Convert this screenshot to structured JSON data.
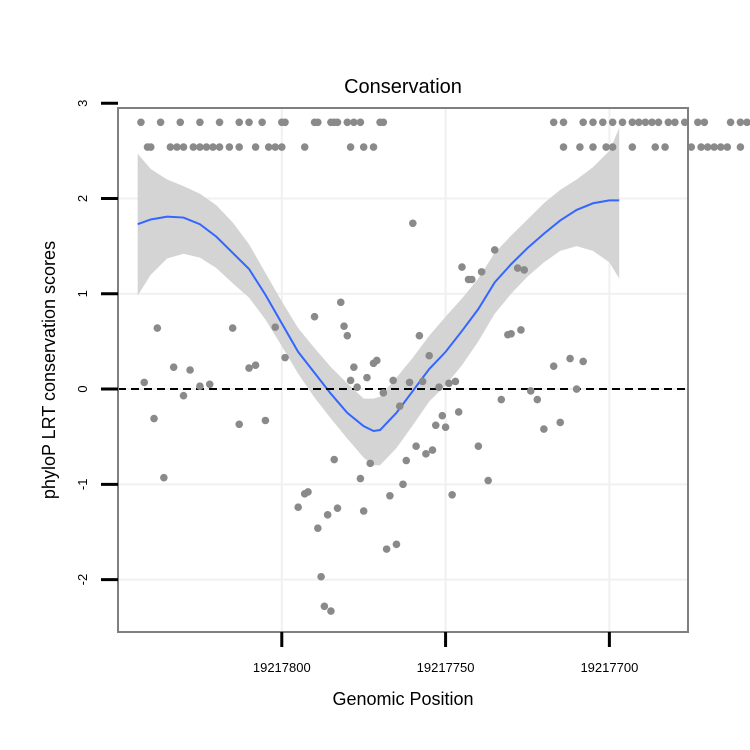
{
  "chart_data": {
    "type": "scatter",
    "title": "Conservation",
    "xlabel": "Genomic Position",
    "ylabel": "phyloP LRT conservation scores",
    "x_reversed": true,
    "xlim": [
      19217850,
      19217676
    ],
    "ylim": [
      -2.55,
      2.95
    ],
    "x_ticks": [
      19217800,
      19217750,
      19217700
    ],
    "x_tick_labels": [
      "19217800",
      "19217750",
      "19217700"
    ],
    "y_ticks": [
      -2,
      -1,
      0,
      1,
      2,
      3
    ],
    "y_tick_labels": [
      "-2",
      "-1",
      "0",
      "1",
      "2",
      "3"
    ],
    "reference_line": {
      "y": 0,
      "style": "dashed",
      "color": "#000000"
    },
    "colors": {
      "points": "#8a8a8a",
      "smooth": "#3366ff",
      "ribbon": "#d4d4d4",
      "grid": "#f0f0f0",
      "frame": "#7f7f7f"
    },
    "series": [
      {
        "name": "scores",
        "type": "scatter",
        "points": [
          [
            19217843,
            2.8
          ],
          [
            19217837,
            2.8
          ],
          [
            19217831,
            2.8
          ],
          [
            19217825,
            2.8
          ],
          [
            19217819,
            2.8
          ],
          [
            19217813,
            2.8
          ],
          [
            19217810,
            2.8
          ],
          [
            19217806,
            2.8
          ],
          [
            19217800,
            2.8
          ],
          [
            19217799,
            2.8
          ],
          [
            19217790,
            2.8
          ],
          [
            19217789,
            2.8
          ],
          [
            19217785,
            2.8
          ],
          [
            19217784,
            2.8
          ],
          [
            19217783,
            2.8
          ],
          [
            19217780,
            2.8
          ],
          [
            19217778,
            2.8
          ],
          [
            19217776,
            2.8
          ],
          [
            19217770,
            2.8
          ],
          [
            19217769,
            2.8
          ],
          [
            19217841,
            2.54
          ],
          [
            19217840,
            2.54
          ],
          [
            19217834,
            2.54
          ],
          [
            19217832,
            2.54
          ],
          [
            19217830,
            2.54
          ],
          [
            19217827,
            2.54
          ],
          [
            19217825,
            2.54
          ],
          [
            19217823,
            2.54
          ],
          [
            19217821,
            2.54
          ],
          [
            19217819,
            2.54
          ],
          [
            19217816,
            2.54
          ],
          [
            19217813,
            2.54
          ],
          [
            19217808,
            2.54
          ],
          [
            19217804,
            2.54
          ],
          [
            19217802,
            2.54
          ],
          [
            19217800,
            2.54
          ],
          [
            19217793,
            2.54
          ],
          [
            19217779,
            2.54
          ],
          [
            19217775,
            2.54
          ],
          [
            19217772,
            2.54
          ],
          [
            19217717,
            2.8
          ],
          [
            19217714,
            2.8
          ],
          [
            19217708,
            2.8
          ],
          [
            19217705,
            2.8
          ],
          [
            19217702,
            2.8
          ],
          [
            19217699,
            2.8
          ],
          [
            19217696,
            2.8
          ],
          [
            19217693,
            2.8
          ],
          [
            19217691,
            2.8
          ],
          [
            19217689,
            2.8
          ],
          [
            19217687,
            2.8
          ],
          [
            19217685,
            2.8
          ],
          [
            19217682,
            2.8
          ],
          [
            19217680,
            2.8
          ],
          [
            19217677,
            2.8
          ],
          [
            19217673,
            2.8
          ],
          [
            19217671,
            2.8
          ],
          [
            19217663,
            2.8
          ],
          [
            19217660,
            2.8
          ],
          [
            19217658,
            2.8
          ],
          [
            19217714,
            2.54
          ],
          [
            19217709,
            2.54
          ],
          [
            19217705,
            2.54
          ],
          [
            19217701,
            2.54
          ],
          [
            19217699,
            2.54
          ],
          [
            19217693,
            2.54
          ],
          [
            19217686,
            2.54
          ],
          [
            19217683,
            2.54
          ],
          [
            19217675,
            2.54
          ],
          [
            19217672,
            2.54
          ],
          [
            19217670,
            2.54
          ],
          [
            19217668,
            2.54
          ],
          [
            19217666,
            2.54
          ],
          [
            19217664,
            2.54
          ],
          [
            19217660,
            2.54
          ],
          [
            19217842,
            0.07
          ],
          [
            19217839,
            -0.31
          ],
          [
            19217838,
            0.64
          ],
          [
            19217836,
            -0.93
          ],
          [
            19217833,
            0.23
          ],
          [
            19217830,
            -0.07
          ],
          [
            19217828,
            0.2
          ],
          [
            19217825,
            0.03
          ],
          [
            19217822,
            0.05
          ],
          [
            19217815,
            0.64
          ],
          [
            19217813,
            -0.37
          ],
          [
            19217810,
            0.22
          ],
          [
            19217808,
            0.25
          ],
          [
            19217805,
            -0.33
          ],
          [
            19217802,
            0.65
          ],
          [
            19217799,
            0.33
          ],
          [
            19217795,
            -1.24
          ],
          [
            19217793,
            -1.1
          ],
          [
            19217792,
            -1.08
          ],
          [
            19217790,
            0.76
          ],
          [
            19217789,
            -1.46
          ],
          [
            19217788,
            -1.97
          ],
          [
            19217787,
            -2.28
          ],
          [
            19217786,
            -1.32
          ],
          [
            19217785,
            -2.33
          ],
          [
            19217784,
            -0.74
          ],
          [
            19217783,
            -1.25
          ],
          [
            19217782,
            0.91
          ],
          [
            19217781,
            0.66
          ],
          [
            19217780,
            0.56
          ],
          [
            19217779,
            0.09
          ],
          [
            19217778,
            0.23
          ],
          [
            19217777,
            0.02
          ],
          [
            19217776,
            -0.94
          ],
          [
            19217775,
            -1.28
          ],
          [
            19217774,
            0.12
          ],
          [
            19217773,
            -0.78
          ],
          [
            19217772,
            0.27
          ],
          [
            19217771,
            0.3
          ],
          [
            19217769,
            -0.04
          ],
          [
            19217768,
            -1.68
          ],
          [
            19217767,
            -1.12
          ],
          [
            19217766,
            0.09
          ],
          [
            19217765,
            -1.63
          ],
          [
            19217764,
            -0.18
          ],
          [
            19217763,
            -1.0
          ],
          [
            19217762,
            -0.75
          ],
          [
            19217761,
            0.07
          ],
          [
            19217760,
            1.74
          ],
          [
            19217759,
            -0.6
          ],
          [
            19217758,
            0.56
          ],
          [
            19217757,
            0.08
          ],
          [
            19217756,
            -0.68
          ],
          [
            19217755,
            0.35
          ],
          [
            19217754,
            -0.64
          ],
          [
            19217753,
            -0.38
          ],
          [
            19217752,
            0.02
          ],
          [
            19217751,
            -0.28
          ],
          [
            19217750,
            -0.4
          ],
          [
            19217749,
            0.06
          ],
          [
            19217748,
            -1.11
          ],
          [
            19217747,
            0.08
          ],
          [
            19217746,
            -0.24
          ],
          [
            19217745,
            1.28
          ],
          [
            19217743,
            1.15
          ],
          [
            19217742,
            1.15
          ],
          [
            19217740,
            -0.6
          ],
          [
            19217739,
            1.23
          ],
          [
            19217737,
            -0.96
          ],
          [
            19217735,
            1.46
          ],
          [
            19217733,
            -0.11
          ],
          [
            19217731,
            0.57
          ],
          [
            19217730,
            0.58
          ],
          [
            19217728,
            1.27
          ],
          [
            19217727,
            0.62
          ],
          [
            19217726,
            1.25
          ],
          [
            19217724,
            -0.02
          ],
          [
            19217722,
            -0.11
          ],
          [
            19217720,
            -0.42
          ],
          [
            19217717,
            0.24
          ],
          [
            19217715,
            -0.35
          ],
          [
            19217712,
            0.32
          ],
          [
            19217710,
            0.0
          ],
          [
            19217708,
            0.29
          ]
        ]
      },
      {
        "name": "smooth",
        "type": "line",
        "points": [
          [
            19217844,
            1.73
          ],
          [
            19217840,
            1.78
          ],
          [
            19217835,
            1.81
          ],
          [
            19217830,
            1.8
          ],
          [
            19217825,
            1.73
          ],
          [
            19217820,
            1.6
          ],
          [
            19217815,
            1.43
          ],
          [
            19217810,
            1.26
          ],
          [
            19217805,
            0.99
          ],
          [
            19217800,
            0.69
          ],
          [
            19217795,
            0.39
          ],
          [
            19217790,
            0.17
          ],
          [
            19217785,
            -0.05
          ],
          [
            19217780,
            -0.25
          ],
          [
            19217775,
            -0.39
          ],
          [
            19217772,
            -0.44
          ],
          [
            19217770,
            -0.43
          ],
          [
            19217765,
            -0.25
          ],
          [
            19217760,
            -0.02
          ],
          [
            19217755,
            0.21
          ],
          [
            19217750,
            0.39
          ],
          [
            19217745,
            0.61
          ],
          [
            19217740,
            0.84
          ],
          [
            19217735,
            1.12
          ],
          [
            19217730,
            1.31
          ],
          [
            19217725,
            1.48
          ],
          [
            19217720,
            1.63
          ],
          [
            19217715,
            1.77
          ],
          [
            19217710,
            1.88
          ],
          [
            19217705,
            1.95
          ],
          [
            19217700,
            1.98
          ],
          [
            19217697,
            1.98
          ]
        ]
      },
      {
        "name": "confidence band",
        "type": "area",
        "upper": [
          [
            19217844,
            2.47
          ],
          [
            19217840,
            2.31
          ],
          [
            19217835,
            2.2
          ],
          [
            19217830,
            2.13
          ],
          [
            19217825,
            2.05
          ],
          [
            19217820,
            1.93
          ],
          [
            19217815,
            1.75
          ],
          [
            19217810,
            1.52
          ],
          [
            19217805,
            1.22
          ],
          [
            19217800,
            0.92
          ],
          [
            19217795,
            0.64
          ],
          [
            19217790,
            0.43
          ],
          [
            19217785,
            0.23
          ],
          [
            19217780,
            0.06
          ],
          [
            19217775,
            -0.1
          ],
          [
            19217772,
            -0.1
          ],
          [
            19217770,
            -0.08
          ],
          [
            19217765,
            0.12
          ],
          [
            19217760,
            0.33
          ],
          [
            19217755,
            0.56
          ],
          [
            19217750,
            0.76
          ],
          [
            19217745,
            0.95
          ],
          [
            19217740,
            1.16
          ],
          [
            19217735,
            1.43
          ],
          [
            19217730,
            1.61
          ],
          [
            19217725,
            1.78
          ],
          [
            19217720,
            1.95
          ],
          [
            19217715,
            2.09
          ],
          [
            19217710,
            2.2
          ],
          [
            19217705,
            2.33
          ],
          [
            19217700,
            2.5
          ],
          [
            19217697,
            2.74
          ]
        ],
        "lower": [
          [
            19217844,
            0.98
          ],
          [
            19217840,
            1.2
          ],
          [
            19217835,
            1.37
          ],
          [
            19217830,
            1.42
          ],
          [
            19217825,
            1.38
          ],
          [
            19217820,
            1.27
          ],
          [
            19217815,
            1.11
          ],
          [
            19217810,
            0.96
          ],
          [
            19217805,
            0.73
          ],
          [
            19217800,
            0.45
          ],
          [
            19217795,
            0.16
          ],
          [
            19217790,
            -0.09
          ],
          [
            19217785,
            -0.31
          ],
          [
            19217780,
            -0.52
          ],
          [
            19217775,
            -0.72
          ],
          [
            19217772,
            -0.8
          ],
          [
            19217770,
            -0.8
          ],
          [
            19217765,
            -0.62
          ],
          [
            19217760,
            -0.38
          ],
          [
            19217755,
            -0.13
          ],
          [
            19217750,
            0.04
          ],
          [
            19217745,
            0.25
          ],
          [
            19217740,
            0.5
          ],
          [
            19217735,
            0.79
          ],
          [
            19217730,
            1.0
          ],
          [
            19217725,
            1.18
          ],
          [
            19217720,
            1.33
          ],
          [
            19217715,
            1.45
          ],
          [
            19217710,
            1.5
          ],
          [
            19217705,
            1.45
          ],
          [
            19217700,
            1.33
          ],
          [
            19217697,
            1.16
          ]
        ]
      }
    ]
  }
}
